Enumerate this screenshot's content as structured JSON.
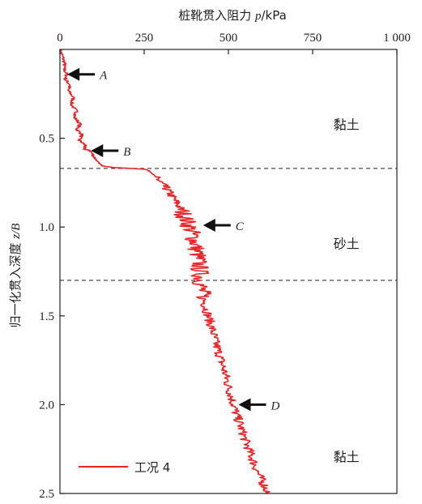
{
  "chart_data": {
    "type": "line",
    "x_axis": {
      "label_prefix": "桩靴贯入阻力 ",
      "label_var": "p",
      "label_unit": "/kPa",
      "ticks": [
        "0",
        "250",
        "500",
        "750",
        "1 000"
      ],
      "tick_values": [
        0,
        250,
        500,
        750,
        1000
      ],
      "range": [
        0,
        1000
      ],
      "position": "top"
    },
    "y_axis": {
      "label_prefix": "归一化贯入深度 ",
      "label_var": "z/B",
      "ticks": [
        "0.5",
        "1.0",
        "1.5",
        "2.0",
        "2.5"
      ],
      "tick_values": [
        0.5,
        1.0,
        1.5,
        2.0,
        2.5
      ],
      "range": [
        0,
        2.5
      ],
      "inverted": true
    },
    "series": [
      {
        "name": "工况 4",
        "color": "#e8262a",
        "points": [
          [
            0,
            0.0
          ],
          [
            8,
            0.04
          ],
          [
            14,
            0.08
          ],
          [
            12,
            0.11
          ],
          [
            20,
            0.14
          ],
          [
            16,
            0.17
          ],
          [
            30,
            0.2
          ],
          [
            24,
            0.23
          ],
          [
            40,
            0.27
          ],
          [
            34,
            0.31
          ],
          [
            50,
            0.35
          ],
          [
            42,
            0.38
          ],
          [
            60,
            0.42
          ],
          [
            50,
            0.45
          ],
          [
            66,
            0.48
          ],
          [
            56,
            0.51
          ],
          [
            76,
            0.54
          ],
          [
            70,
            0.56
          ],
          [
            90,
            0.57
          ],
          [
            100,
            0.6
          ],
          [
            110,
            0.63
          ],
          [
            125,
            0.655
          ],
          [
            160,
            0.665
          ],
          [
            210,
            0.67
          ],
          [
            255,
            0.675
          ],
          [
            270,
            0.69
          ],
          [
            285,
            0.72
          ],
          [
            300,
            0.75
          ],
          [
            315,
            0.78
          ],
          [
            330,
            0.82
          ],
          [
            345,
            0.86
          ],
          [
            360,
            0.9
          ],
          [
            372,
            0.95
          ],
          [
            385,
            1.0
          ],
          [
            395,
            1.05
          ],
          [
            402,
            1.1
          ],
          [
            408,
            1.15
          ],
          [
            412,
            1.2
          ],
          [
            415,
            1.25
          ],
          [
            418,
            1.3
          ],
          [
            420,
            1.35
          ],
          [
            425,
            1.4
          ],
          [
            432,
            1.45
          ],
          [
            440,
            1.5
          ],
          [
            448,
            1.55
          ],
          [
            455,
            1.6
          ],
          [
            462,
            1.65
          ],
          [
            470,
            1.7
          ],
          [
            478,
            1.75
          ],
          [
            486,
            1.8
          ],
          [
            494,
            1.85
          ],
          [
            500,
            1.9
          ],
          [
            508,
            1.95
          ],
          [
            515,
            2.0
          ],
          [
            523,
            2.05
          ],
          [
            532,
            2.1
          ],
          [
            541,
            2.15
          ],
          [
            550,
            2.2
          ],
          [
            560,
            2.25
          ],
          [
            570,
            2.3
          ],
          [
            580,
            2.35
          ],
          [
            592,
            2.4
          ],
          [
            605,
            2.45
          ],
          [
            618,
            2.5
          ]
        ]
      }
    ],
    "layer_boundaries": [
      0.67,
      1.3
    ],
    "layer_labels": [
      {
        "text": "黏土",
        "x": 850,
        "z": 0.45
      },
      {
        "text": "砂土",
        "x": 850,
        "z": 1.12
      },
      {
        "text": "黏土",
        "x": 850,
        "z": 2.32
      }
    ],
    "arrows": [
      {
        "label": "A",
        "x": 22,
        "z": 0.14
      },
      {
        "label": "B",
        "x": 92,
        "z": 0.57
      },
      {
        "label": "C",
        "x": 425,
        "z": 0.99
      },
      {
        "label": "D",
        "x": 530,
        "z": 2.0
      }
    ],
    "legend": {
      "label": "工况 4",
      "placement": "bottom-left"
    }
  }
}
